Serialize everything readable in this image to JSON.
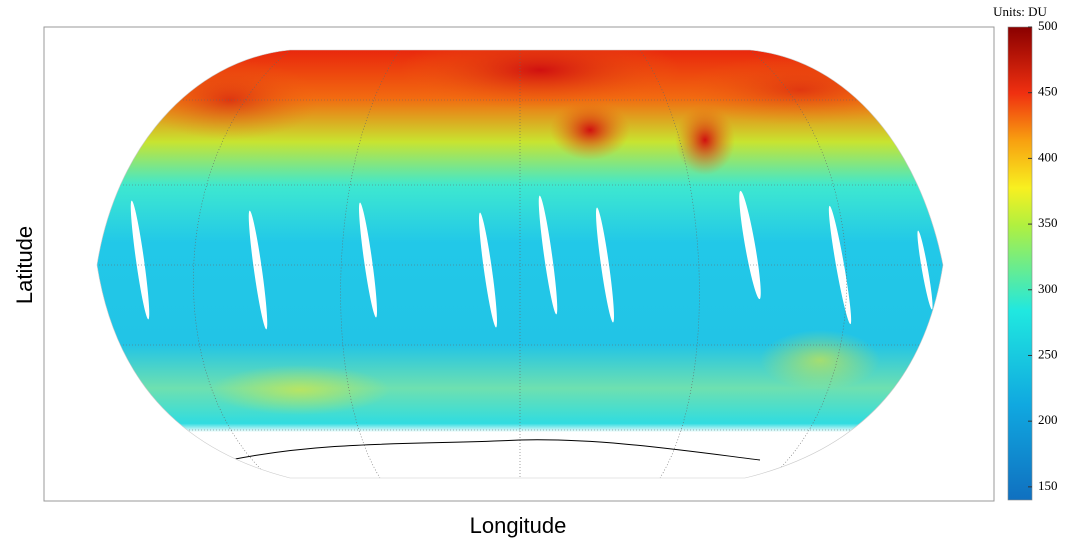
{
  "map": {
    "x_label": "Longitude",
    "y_label": "Latitude",
    "colorbar": {
      "title": "Units: DU",
      "clim": [
        140,
        500
      ],
      "ticks": [
        150,
        200,
        250,
        300,
        350,
        400,
        450,
        500
      ]
    }
  }
}
